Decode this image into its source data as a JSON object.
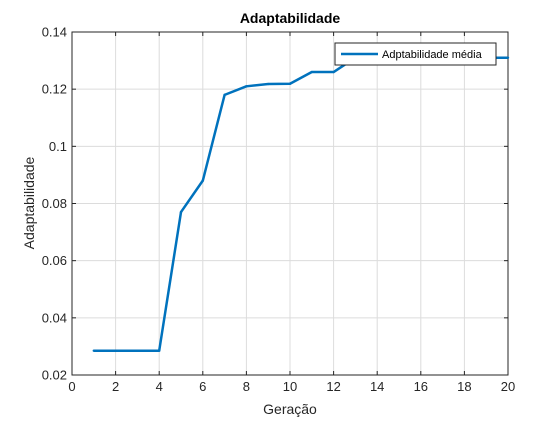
{
  "chart_data": {
    "type": "line",
    "title": "Adaptabilidade",
    "xlabel": "Geração",
    "ylabel": "Adaptabilidade",
    "xlim": [
      0,
      20
    ],
    "ylim": [
      0.02,
      0.14
    ],
    "xticks": [
      0,
      2,
      4,
      6,
      8,
      10,
      12,
      14,
      16,
      18,
      20
    ],
    "yticks": [
      0.02,
      0.04,
      0.06,
      0.08,
      0.1,
      0.12,
      0.14
    ],
    "xtick_labels": [
      "0",
      "2",
      "4",
      "6",
      "8",
      "10",
      "12",
      "14",
      "16",
      "18",
      "20"
    ],
    "ytick_labels": [
      "0.02",
      "0.04",
      "0.06",
      "0.08",
      "0.1",
      "0.12",
      "0.14"
    ],
    "grid": true,
    "legend_position": "top-right",
    "series": [
      {
        "name": "Adptabilidade média",
        "color": "#0072BD",
        "x": [
          1,
          2,
          3,
          4,
          5,
          6,
          7,
          8,
          9,
          10,
          11,
          12,
          13,
          14,
          15,
          16,
          17,
          18,
          19,
          20
        ],
        "y": [
          0.0285,
          0.0285,
          0.0285,
          0.0285,
          0.077,
          0.088,
          0.118,
          0.121,
          0.1218,
          0.1219,
          0.126,
          0.126,
          0.131,
          0.131,
          0.131,
          0.131,
          0.131,
          0.131,
          0.131,
          0.131
        ]
      }
    ]
  }
}
